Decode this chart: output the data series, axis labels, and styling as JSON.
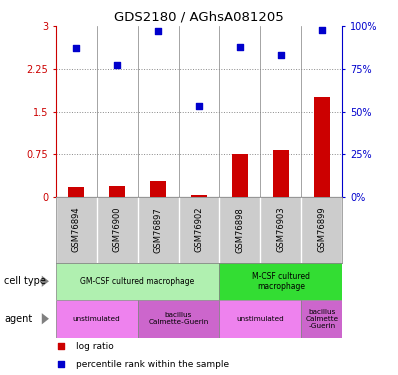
{
  "title": "GDS2180 / AGhsA081205",
  "samples": [
    "GSM76894",
    "GSM76900",
    "GSM76897",
    "GSM76902",
    "GSM76898",
    "GSM76903",
    "GSM76899"
  ],
  "log_ratio": [
    0.18,
    0.2,
    0.28,
    0.04,
    0.75,
    0.82,
    1.75
  ],
  "percentile_rank": [
    87,
    77,
    97,
    53,
    88,
    83,
    98
  ],
  "ylim_left": [
    0,
    3
  ],
  "ylim_right": [
    0,
    100
  ],
  "yticks_left": [
    0,
    0.75,
    1.5,
    2.25,
    3
  ],
  "yticks_right": [
    0,
    25,
    50,
    75,
    100
  ],
  "ytick_labels_left": [
    "0",
    "0.75",
    "1.5",
    "2.25",
    "3"
  ],
  "ytick_labels_right": [
    "0%",
    "25%",
    "50%",
    "75%",
    "100%"
  ],
  "hlines": [
    0.75,
    1.5,
    2.25
  ],
  "bar_color": "#cc0000",
  "dot_color": "#0000cc",
  "cell_type_row": [
    {
      "label": "GM-CSF cultured macrophage",
      "start": 0,
      "end": 4,
      "color": "#b0f0b0"
    },
    {
      "label": "M-CSF cultured\nmacrophage",
      "start": 4,
      "end": 7,
      "color": "#33dd33"
    }
  ],
  "agent_row": [
    {
      "label": "unstimulated",
      "start": 0,
      "end": 2,
      "color": "#ee82ee"
    },
    {
      "label": "bacillus\nCalmette-Guerin",
      "start": 2,
      "end": 4,
      "color": "#cc66cc"
    },
    {
      "label": "unstimulated",
      "start": 4,
      "end": 6,
      "color": "#ee82ee"
    },
    {
      "label": "bacillus\nCalmette\n-Guerin",
      "start": 6,
      "end": 7,
      "color": "#cc66cc"
    }
  ],
  "legend_items": [
    {
      "label": "log ratio",
      "color": "#cc0000"
    },
    {
      "label": "percentile rank within the sample",
      "color": "#0000cc"
    }
  ],
  "axis_left_color": "#cc0000",
  "axis_right_color": "#0000cc",
  "sample_box_color": "#cccccc",
  "grid_color": "#888888"
}
